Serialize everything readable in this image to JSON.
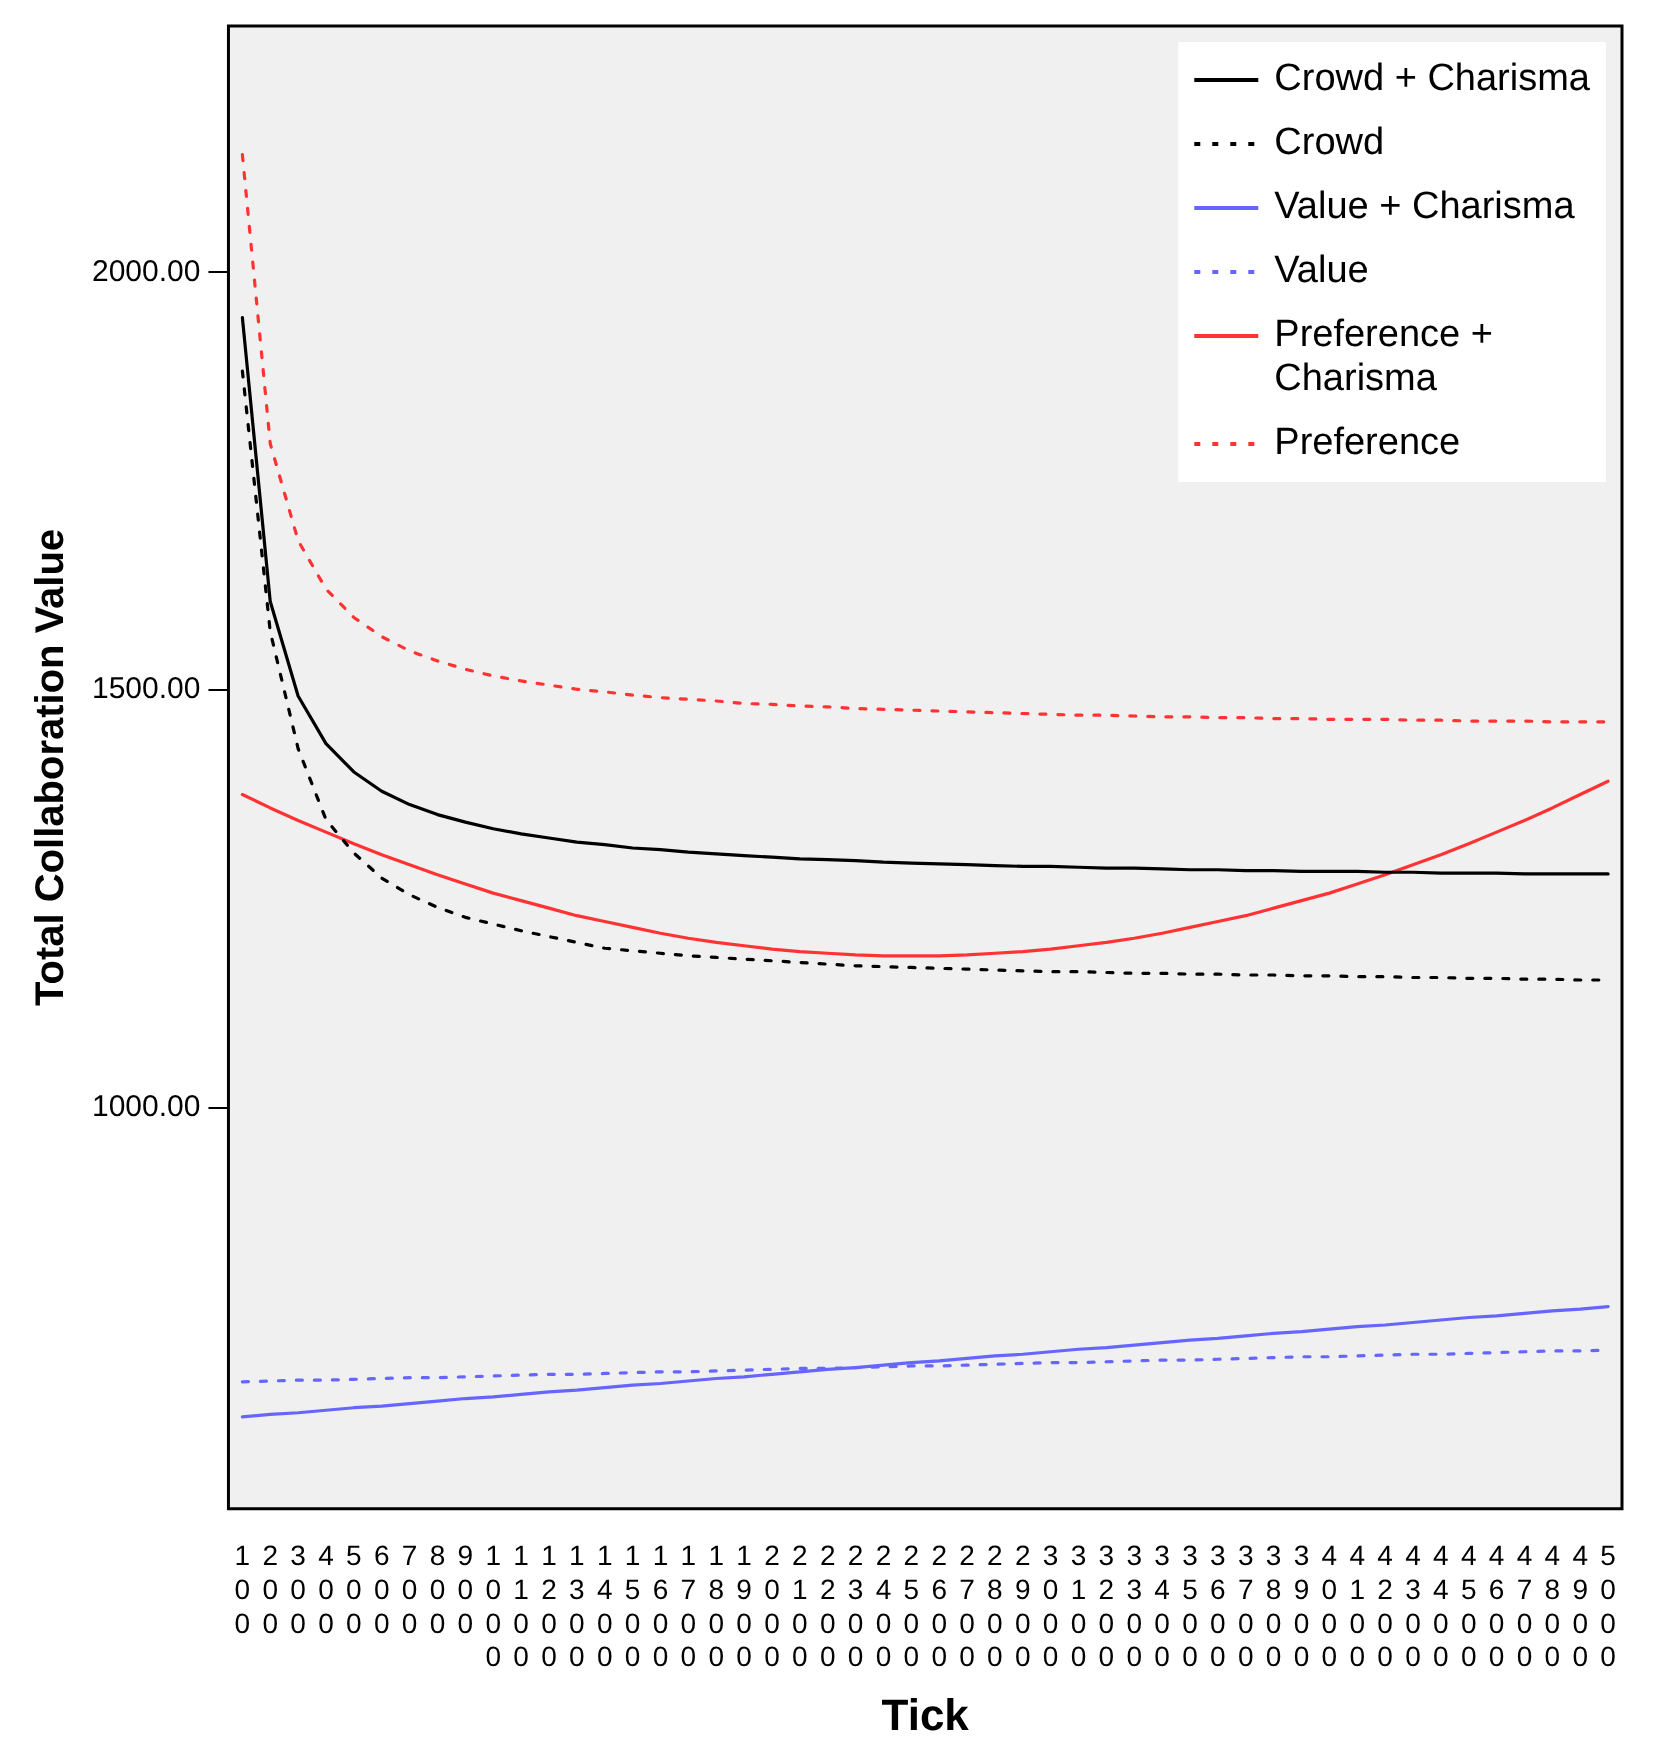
{
  "chart_data": {
    "type": "line",
    "xlabel": "Tick",
    "ylabel": "Total Collaboration Value",
    "categories": [
      "100",
      "200",
      "300",
      "400",
      "500",
      "600",
      "700",
      "800",
      "900",
      "1000",
      "1100",
      "1200",
      "1300",
      "1400",
      "1500",
      "1600",
      "1700",
      "1800",
      "1900",
      "2000",
      "2100",
      "2200",
      "2300",
      "2400",
      "2500",
      "2600",
      "2700",
      "2800",
      "2900",
      "3000",
      "3100",
      "3200",
      "3300",
      "3400",
      "3500",
      "3600",
      "3700",
      "3800",
      "3900",
      "4000",
      "4100",
      "4200",
      "4300",
      "4400",
      "4500",
      "4600",
      "4700",
      "4800",
      "4900",
      "5000"
    ],
    "ylim": [
      520,
      2295
    ],
    "yticks": [
      {
        "value": 1000,
        "label": "1000.00"
      },
      {
        "value": 1500,
        "label": "1500.00"
      },
      {
        "value": 2000,
        "label": "2000.00"
      }
    ],
    "grid": false,
    "legend": "top right",
    "marker": "none",
    "series": [
      {
        "name": "Crowd + Charisma",
        "color": "#000000",
        "line_style": "solid",
        "values": [
          1946,
          1606,
          1493,
          1436,
          1402,
          1379,
          1363,
          1351,
          1342,
          1334,
          1328,
          1323,
          1318,
          1315,
          1311,
          1309,
          1306,
          1304,
          1302,
          1300,
          1298,
          1297,
          1296,
          1294,
          1293,
          1292,
          1291,
          1290,
          1289,
          1289,
          1288,
          1287,
          1287,
          1286,
          1285,
          1285,
          1284,
          1284,
          1283,
          1283,
          1283,
          1282,
          1282,
          1281,
          1281,
          1281,
          1280,
          1280,
          1280,
          1280
        ]
      },
      {
        "name": "Crowd",
        "color": "#000000",
        "line_style": "dotted",
        "values": [
          1882,
          1570,
          1430,
          1345,
          1305,
          1275,
          1255,
          1240,
          1228,
          1220,
          1212,
          1205,
          1198,
          1191,
          1188,
          1185,
          1182,
          1180,
          1178,
          1176,
          1174,
          1172,
          1170,
          1169,
          1168,
          1167,
          1166,
          1165,
          1164,
          1163,
          1163,
          1162,
          1161,
          1161,
          1160,
          1160,
          1159,
          1159,
          1158,
          1158,
          1157,
          1157,
          1156,
          1156,
          1155,
          1155,
          1154,
          1154,
          1153,
          1153
        ]
      },
      {
        "name": "Value + Charisma",
        "color": "#6666ff",
        "line_style": "solid",
        "values": [
          630,
          633,
          635,
          638,
          641,
          643,
          646,
          649,
          652,
          654,
          657,
          660,
          662,
          665,
          668,
          670,
          673,
          676,
          678,
          681,
          684,
          687,
          689,
          692,
          695,
          697,
          700,
          703,
          705,
          708,
          711,
          713,
          716,
          719,
          722,
          724,
          727,
          730,
          732,
          735,
          738,
          740,
          743,
          746,
          749,
          751,
          754,
          757,
          759,
          762
        ]
      },
      {
        "name": "Value",
        "color": "#6666ff",
        "line_style": "dotted",
        "values": [
          672,
          673,
          674,
          674,
          675,
          676,
          677,
          677,
          678,
          679,
          680,
          681,
          681,
          682,
          683,
          684,
          684,
          685,
          686,
          687,
          688,
          688,
          689,
          690,
          691,
          691,
          692,
          693,
          694,
          695,
          695,
          696,
          697,
          698,
          698,
          699,
          700,
          701,
          702,
          702,
          703,
          704,
          705,
          705,
          706,
          707,
          708,
          709,
          709,
          710
        ]
      },
      {
        "name": "Preference + Charisma",
        "color": "#ff3333",
        "line_style": "solid",
        "values": [
          1375,
          1359,
          1344,
          1330,
          1316,
          1303,
          1291,
          1279,
          1268,
          1257,
          1248,
          1239,
          1230,
          1223,
          1216,
          1209,
          1203,
          1198,
          1194,
          1190,
          1187,
          1185,
          1183,
          1182,
          1182,
          1182,
          1183,
          1185,
          1187,
          1190,
          1194,
          1198,
          1203,
          1209,
          1216,
          1223,
          1230,
          1239,
          1248,
          1257,
          1268,
          1279,
          1291,
          1303,
          1316,
          1330,
          1344,
          1359,
          1375,
          1391
        ]
      },
      {
        "name": "Preference",
        "color": "#ff3333",
        "line_style": "dotted",
        "values": [
          2141,
          1795,
          1679,
          1621,
          1587,
          1564,
          1547,
          1535,
          1525,
          1517,
          1511,
          1506,
          1501,
          1498,
          1494,
          1491,
          1489,
          1487,
          1484,
          1483,
          1481,
          1480,
          1478,
          1477,
          1476,
          1475,
          1474,
          1473,
          1472,
          1471,
          1470,
          1470,
          1469,
          1468,
          1468,
          1467,
          1467,
          1466,
          1466,
          1465,
          1465,
          1465,
          1464,
          1464,
          1463,
          1463,
          1463,
          1462,
          1462,
          1462
        ]
      }
    ]
  }
}
